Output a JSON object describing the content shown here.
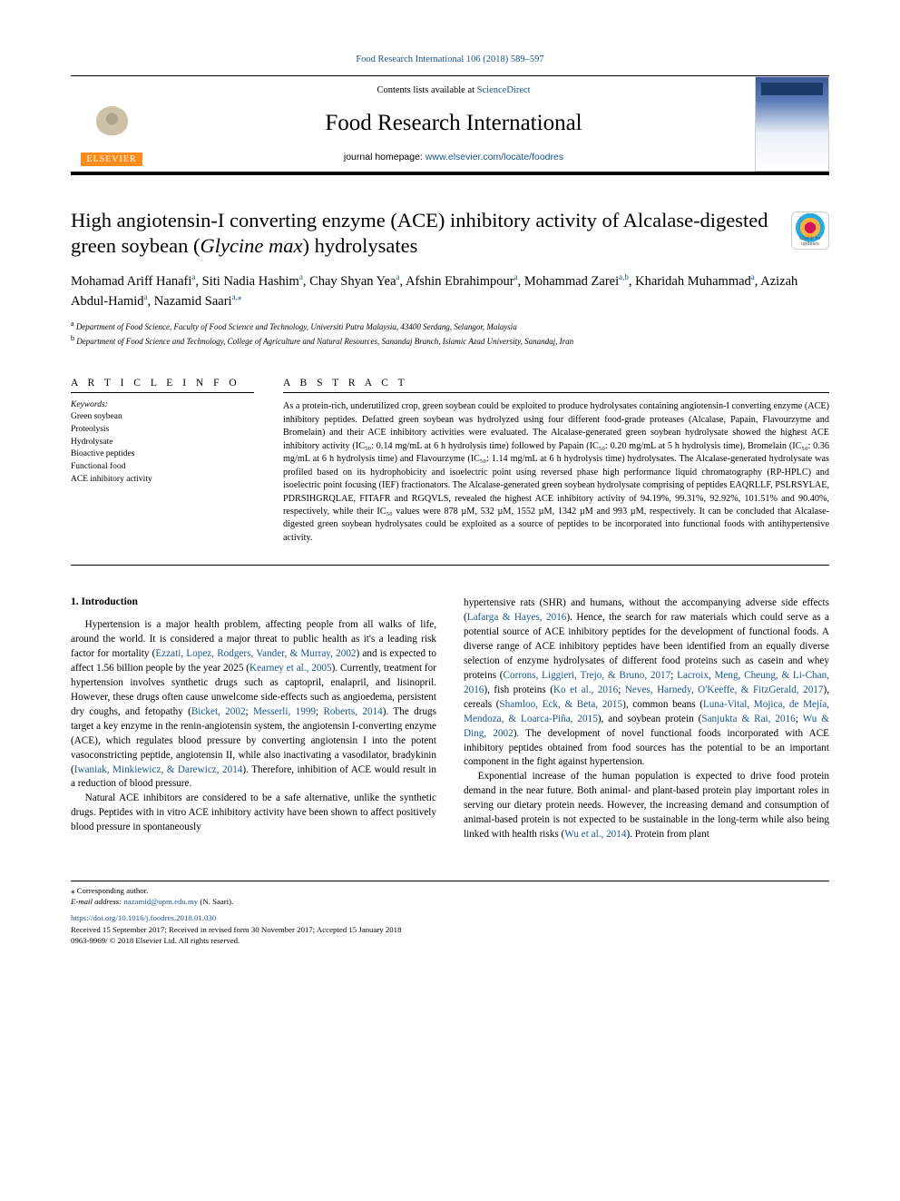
{
  "journal": {
    "header_link": "Food Research International 106 (2018) 589–597",
    "contents_prefix": "Contents lists available at ",
    "contents_link": "ScienceDirect",
    "title": "Food Research International",
    "homepage_prefix": "journal homepage: ",
    "homepage_link": "www.elsevier.com/locate/foodres",
    "publisher": "ELSEVIER"
  },
  "crossmark_label": "Check for updates",
  "article": {
    "title_a": "High angiotensin-I converting enzyme (ACE) inhibitory activity of Alcalase-digested green soybean (",
    "title_em": "Glycine max",
    "title_b": ") hydrolysates"
  },
  "authors": {
    "a1": "Mohamad Ariff Hanafi",
    "s1": "a",
    "a2": "Siti Nadia Hashim",
    "s2": "a",
    "a3": "Chay Shyan Yea",
    "s3": "a",
    "a4": "Afshin Ebrahimpour",
    "s4": "a",
    "a5": "Mohammad Zarei",
    "s5": "a,b",
    "a6": "Kharidah Muhammad",
    "s6": "a",
    "a7": "Azizah Abdul-Hamid",
    "s7": "a",
    "a8": "Nazamid Saari",
    "s8": "a,",
    "s8b": "⁎"
  },
  "affiliations": {
    "a": "Department of Food Science, Faculty of Food Science and Technology, Universiti Putra Malaysia, 43400 Serdang, Selangor, Malaysia",
    "b": "Department of Food Science and Technology, College of Agriculture and Natural Resources, Sanandaj Branch, Islamic Azad University, Sanandaj, Iran"
  },
  "info": {
    "heading": "A R T I C L E  I N F O",
    "keywords_label": "Keywords:",
    "keywords": [
      "Green soybean",
      "Proteolysis",
      "Hydrolysate",
      "Bioactive peptides",
      "Functional food",
      "ACE inhibitory activity"
    ]
  },
  "abstract": {
    "heading": "A B S T R A C T",
    "text": "As a protein-rich, underutilized crop, green soybean could be exploited to produce hydrolysates containing angiotensin-I converting enzyme (ACE) inhibitory peptides. Defatted green soybean was hydrolyzed using four different food-grade proteases (Alcalase, Papain, Flavourzyme and Bromelain) and their ACE inhibitory activities were evaluated. The Alcalase-generated green soybean hydrolysate showed the highest ACE inhibitory activity (IC₅₀: 0.14 mg/mL at 6 h hydrolysis time) followed by Papain (IC₅₀: 0.20 mg/mL at 5 h hydrolysis time), Bromelain (IC₅₀: 0.36 mg/mL at 6 h hydrolysis time) and Flavourzyme (IC₅₀: 1.14 mg/mL at 6 h hydrolysis time) hydrolysates. The Alcalase-generated hydrolysate was profiled based on its hydrophobicity and isoelectric point using reversed phase high performance liquid chromatography (RP-HPLC) and isoelectric point focusing (IEF) fractionators. The Alcalase-generated green soybean hydrolysate comprising of peptides EAQRLLF, PSLRSYLAE, PDRSIHGRQLAE, FITAFR and RGQVLS, revealed the highest ACE inhibitory activity of 94.19%, 99.31%, 92.92%, 101.51% and 90.40%, respectively, while their IC₅₀ values were 878 µM, 532 µM, 1552 µM, 1342 µM and 993 µM, respectively. It can be concluded that Alcalase-digested green soybean hydrolysates could be exploited as a source of peptides to be incorporated into functional foods with antihypertensive activity."
  },
  "intro": {
    "heading": "1. Introduction",
    "p1a": "Hypertension is a major health problem, affecting people from all walks of life, around the world. It is considered a major threat to public health as it's a leading risk factor for mortality (",
    "c1": "Ezzati, Lopez, Rodgers, Vander, & Murray, 2002",
    "p1b": ") and is expected to affect 1.56 billion people by the year 2025 (",
    "c2": "Kearney et al., 2005",
    "p1c": "). Currently, treatment for hypertension involves synthetic drugs such as captopril, enalapril, and lisinopril. However, these drugs often cause unwelcome side-effects such as angioedema, persistent dry coughs, and fetopathy (",
    "c3": "Bicket, 2002",
    "p1d": "; ",
    "c4": "Messerli, 1999",
    "p1e": "; ",
    "c5": "Roberts, 2014",
    "p1f": "). The drugs target a key enzyme in the renin-angiotensin system, the angiotensin I-converting enzyme (ACE), which regulates blood pressure by converting angiotensin I into the potent vasoconstricting peptide, angiotensin II, while also inactivating a vasodilator, bradykinin (",
    "c6": "Iwaniak, Minkiewicz, & Darewicz, 2014",
    "p1g": "). Therefore, inhibition of ACE would result in a reduction of blood pressure.",
    "p2": "Natural ACE inhibitors are considered to be a safe alternative, unlike the synthetic drugs. Peptides with in vitro ACE inhibitory activity have been shown to affect positively blood pressure in spontaneously",
    "p3a": "hypertensive rats (SHR) and humans, without the accompanying adverse side effects (",
    "c7": "Lafarga & Hayes, 2016",
    "p3b": "). Hence, the search for raw materials which could serve as a potential source of ACE inhibitory peptides for the development of functional foods. A diverse range of ACE inhibitory peptides have been identified from an equally diverse selection of enzyme hydrolysates of different food proteins such as casein and whey proteins (",
    "c8": "Corrons, Liggieri, Trejo, & Bruno, 2017",
    "p3c": "; ",
    "c9": "Lacroix, Meng, Cheung, & Li-Chan, 2016",
    "p3d": "), fish proteins (",
    "c10": "Ko et al., 2016",
    "p3e": "; ",
    "c11": "Neves, Harnedy, O'Keeffe, & FitzGerald, 2017",
    "p3f": "), cereals (",
    "c12": "Shamloo, Eck, & Beta, 2015",
    "p3g": "), common beans (",
    "c13": "Luna-Vital, Mojica, de Mejía, Mendoza, & Loarca-Piña, 2015",
    "p3h": "), and soybean protein (",
    "c14": "Sanjukta & Rai, 2016",
    "p3i": "; ",
    "c15": "Wu & Ding, 2002",
    "p3j": "). The development of novel functional foods incorporated with ACE inhibitory peptides obtained from food sources has the potential to be an important component in the fight against hypertension.",
    "p4a": "Exponential increase of the human population is expected to drive food protein demand in the near future. Both animal- and plant-based protein play important roles in serving our dietary protein needs. However, the increasing demand and consumption of animal-based protein is not expected to be sustainable in the long-term while also being linked with health risks (",
    "c16": "Wu et al., 2014",
    "p4b": "). Protein from plant"
  },
  "footer": {
    "corr_label": "⁎ Corresponding author.",
    "email_label": "E-mail address: ",
    "email": "nazamid@upm.edu.my",
    "email_name": " (N. Saari).",
    "doi": "https://doi.org/10.1016/j.foodres.2018.01.030",
    "received": "Received 15 September 2017; Received in revised form 30 November 2017; Accepted 15 January 2018",
    "issn": "0963-9969/ © 2018 Elsevier Ltd. All rights reserved."
  },
  "colors": {
    "link": "#1a5490",
    "elsevier_orange": "#ff8c1a",
    "text": "#000000",
    "bg": "#ffffff"
  }
}
